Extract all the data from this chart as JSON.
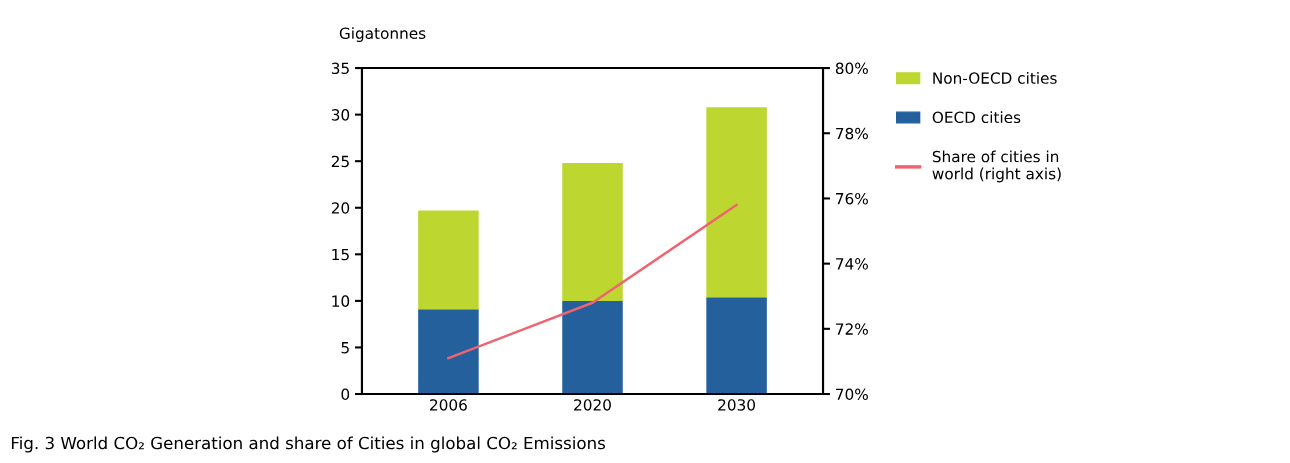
{
  "chart_data": {
    "type": "bar",
    "title": "Fig. 3 World CO₂ Generation and share of Cities in global CO₂ Emissions",
    "ylabel": "Gigatonnes",
    "categories": [
      "2006",
      "2020",
      "2030"
    ],
    "stacked": true,
    "series": [
      {
        "name": "OECD cities",
        "color": "#23609c",
        "values": [
          9.1,
          10.0,
          10.4
        ]
      },
      {
        "name": "Non-OECD cities",
        "color": "#bdd630",
        "values": [
          10.6,
          14.8,
          20.4
        ]
      },
      {
        "name": "Share of cities in world (right axis)",
        "type": "line",
        "axis": "y2",
        "color": "#f06470",
        "values": [
          71.1,
          72.8,
          75.8
        ]
      }
    ],
    "ylim": [
      0,
      35
    ],
    "yticks": [
      0,
      5,
      10,
      15,
      20,
      25,
      30,
      35
    ],
    "y2lim": [
      70,
      80
    ],
    "y2ticks": [
      {
        "value": 70,
        "label": "70%"
      },
      {
        "value": 72,
        "label": "72%"
      },
      {
        "value": 74,
        "label": "74%"
      },
      {
        "value": 76,
        "label": "76%"
      },
      {
        "value": 78,
        "label": "78%"
      },
      {
        "value": 80,
        "label": "80%"
      }
    ],
    "legend": "right",
    "grid": false
  }
}
